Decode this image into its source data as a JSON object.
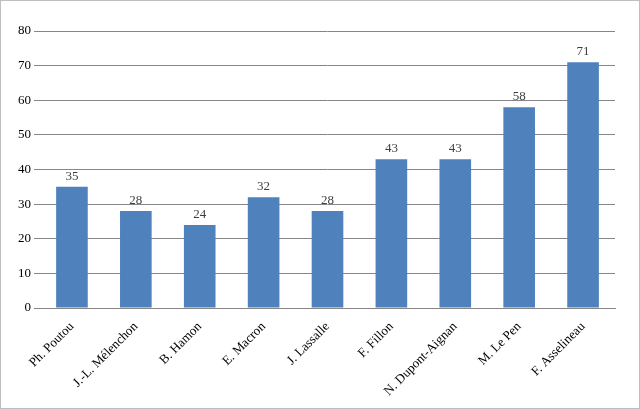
{
  "chart_data": {
    "type": "bar",
    "categories": [
      "Ph. Poutou",
      "J.-L. Mélenchon",
      "B. Hamon",
      "E. Macron",
      "J. Lassalle",
      "F. Fillon",
      "N. Dupont-Aignan",
      "M. Le Pen",
      "F. Asselineau"
    ],
    "values": [
      35,
      28,
      24,
      32,
      28,
      43,
      43,
      58,
      71
    ],
    "color": "#4f81bd",
    "ylim": [
      0,
      80
    ],
    "yticks": [
      0,
      10,
      20,
      30,
      40,
      50,
      60,
      70,
      80
    ],
    "grid": true,
    "data_labels": true
  }
}
